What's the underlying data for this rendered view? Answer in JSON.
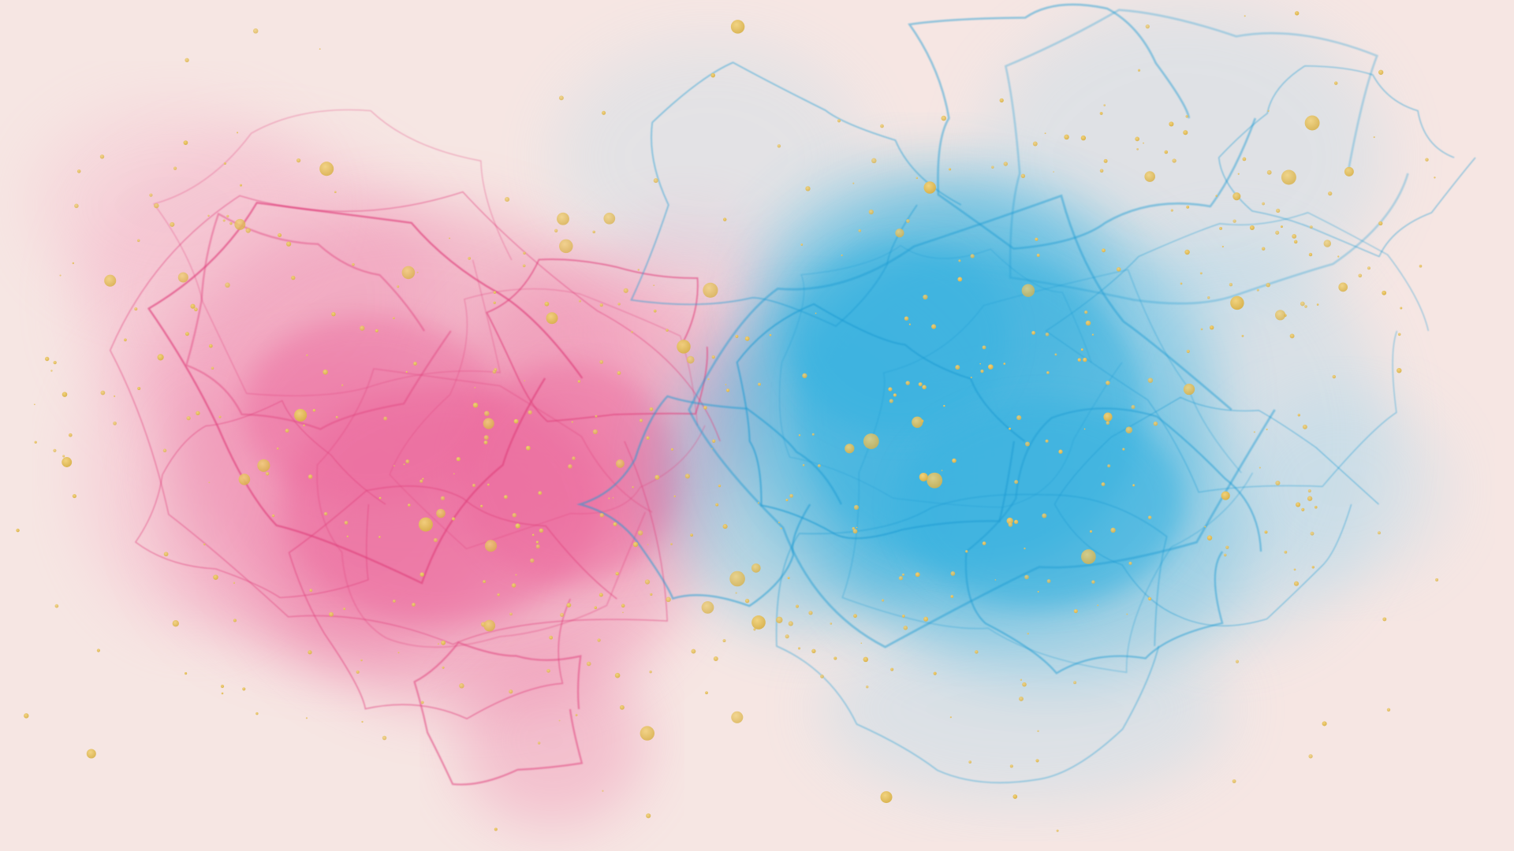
{
  "artwork": {
    "kind": "alcohol-ink abstract",
    "colors": {
      "background": "#f6e6e3",
      "pink_ink": "#ec6a9e",
      "pink_ink_light": "#f4a6c2",
      "pink_vein": "#e0457f",
      "blue_ink": "#38b2e0",
      "blue_ink_light": "#8fd2ee",
      "blue_vein": "#1f9bd3",
      "gold_flake": "#d9b24a",
      "gold_highlight": "#f2d27a"
    },
    "elements": [
      "pink-ink-cloud",
      "blue-ink-cloud",
      "gold-flakes"
    ]
  }
}
